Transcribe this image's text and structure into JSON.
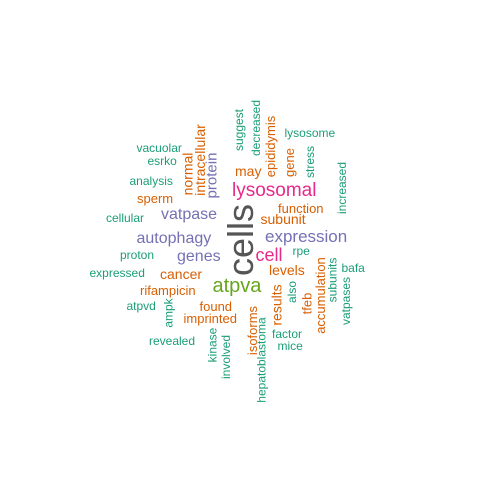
{
  "colors": {
    "teal": "#1b9e77",
    "orange": "#d95f02",
    "purple": "#7570b3",
    "magenta": "#e7298a",
    "green": "#66a61e",
    "gray": "#555555"
  },
  "words": [
    {
      "text": "cells",
      "color": "gray"
    },
    {
      "text": "atpva",
      "color": "green"
    },
    {
      "text": "lysosomal",
      "color": "magenta"
    },
    {
      "text": "cell",
      "color": "magenta"
    },
    {
      "text": "expression",
      "color": "purple"
    },
    {
      "text": "autophagy",
      "color": "purple"
    },
    {
      "text": "vatpase",
      "color": "purple"
    },
    {
      "text": "genes",
      "color": "purple"
    },
    {
      "text": "protein",
      "color": "purple"
    },
    {
      "text": "cancer",
      "color": "orange"
    },
    {
      "text": "levels",
      "color": "orange"
    },
    {
      "text": "subunit",
      "color": "orange"
    },
    {
      "text": "function",
      "color": "orange"
    },
    {
      "text": "may",
      "color": "orange"
    },
    {
      "text": "normal",
      "color": "orange"
    },
    {
      "text": "intracellular",
      "color": "orange"
    },
    {
      "text": "epididymis",
      "color": "orange"
    },
    {
      "text": "gene",
      "color": "orange"
    },
    {
      "text": "sperm",
      "color": "orange"
    },
    {
      "text": "found",
      "color": "orange"
    },
    {
      "text": "imprinted",
      "color": "orange"
    },
    {
      "text": "rifampicin",
      "color": "orange"
    },
    {
      "text": "results",
      "color": "orange"
    },
    {
      "text": "accumulation",
      "color": "orange"
    },
    {
      "text": "tfeb",
      "color": "orange"
    },
    {
      "text": "isoforms",
      "color": "orange"
    },
    {
      "text": "decreased",
      "color": "teal"
    },
    {
      "text": "suggest",
      "color": "teal"
    },
    {
      "text": "lysosome",
      "color": "teal"
    },
    {
      "text": "stress",
      "color": "teal"
    },
    {
      "text": "vacuolar",
      "color": "teal"
    },
    {
      "text": "esrko",
      "color": "teal"
    },
    {
      "text": "analysis",
      "color": "teal"
    },
    {
      "text": "increased",
      "color": "teal"
    },
    {
      "text": "cellular",
      "color": "teal"
    },
    {
      "text": "proton",
      "color": "teal"
    },
    {
      "text": "rpe",
      "color": "teal"
    },
    {
      "text": "expressed",
      "color": "teal"
    },
    {
      "text": "bafa",
      "color": "teal"
    },
    {
      "text": "subunits",
      "color": "teal"
    },
    {
      "text": "also",
      "color": "teal"
    },
    {
      "text": "atpvd",
      "color": "teal"
    },
    {
      "text": "ampk",
      "color": "teal"
    },
    {
      "text": "vatpases",
      "color": "teal"
    },
    {
      "text": "factor",
      "color": "teal"
    },
    {
      "text": "mice",
      "color": "teal"
    },
    {
      "text": "revealed",
      "color": "teal"
    },
    {
      "text": "kinase",
      "color": "teal"
    },
    {
      "text": "involved",
      "color": "teal"
    },
    {
      "text": "hepatoblastoma",
      "color": "teal"
    }
  ]
}
